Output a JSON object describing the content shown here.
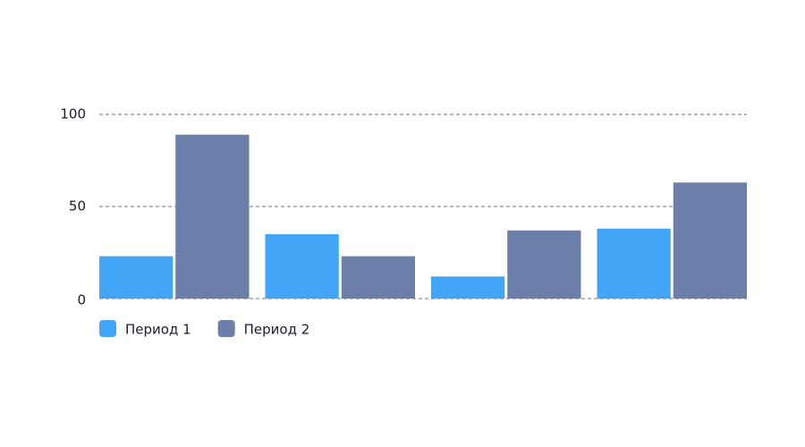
{
  "chart_data": {
    "type": "bar",
    "categories": [
      null,
      null,
      null,
      null
    ],
    "series": [
      {
        "name": "Период 1",
        "color": "#42a5f5",
        "values": [
          23,
          35,
          12,
          38
        ]
      },
      {
        "name": "Период 2",
        "color": "#6b7fa8",
        "values": [
          89,
          23,
          37,
          63
        ]
      }
    ],
    "ylim": [
      0,
      100
    ],
    "yticks": [
      0,
      50,
      100
    ],
    "grid": true
  }
}
